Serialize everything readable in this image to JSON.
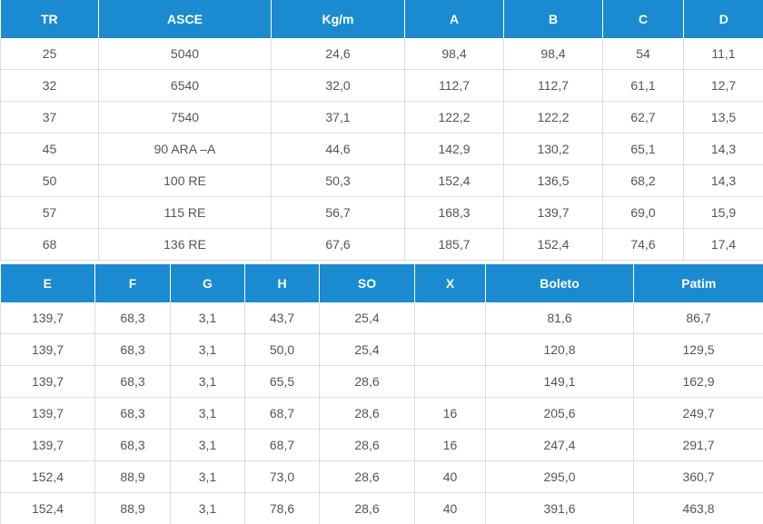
{
  "table1": {
    "headers": [
      "TR",
      "ASCE",
      "Kg/m",
      "A",
      "B",
      "C",
      "D"
    ],
    "rows": [
      [
        "25",
        "5040",
        "24,6",
        "98,4",
        "98,4",
        "54",
        "11,1"
      ],
      [
        "32",
        "6540",
        "32,0",
        "112,7",
        "112,7",
        "61,1",
        "12,7"
      ],
      [
        "37",
        "7540",
        "37,1",
        "122,2",
        "122,2",
        "62,7",
        "13,5"
      ],
      [
        "45",
        "90 ARA –A",
        "44,6",
        "142,9",
        "130,2",
        "65,1",
        "14,3"
      ],
      [
        "50",
        "100 RE",
        "50,3",
        "152,4",
        "136,5",
        "68,2",
        "14,3"
      ],
      [
        "57",
        "115 RE",
        "56,7",
        "168,3",
        "139,7",
        "69,0",
        "15,9"
      ],
      [
        "68",
        "136 RE",
        "67,6",
        "185,7",
        "152,4",
        "74,6",
        "17,4"
      ]
    ]
  },
  "table2": {
    "headers": [
      "E",
      "F",
      "G",
      "H",
      "SO",
      "X",
      "Boleto",
      "Patim"
    ],
    "rows": [
      [
        "139,7",
        "68,3",
        "3,1",
        "43,7",
        "25,4",
        "",
        "81,6",
        "86,7"
      ],
      [
        "139,7",
        "68,3",
        "3,1",
        "50,0",
        "25,4",
        "",
        "120,8",
        "129,5"
      ],
      [
        "139,7",
        "68,3",
        "3,1",
        "65,5",
        "28,6",
        "",
        "149,1",
        "162,9"
      ],
      [
        "139,7",
        "68,3",
        "3,1",
        "68,7",
        "28,6",
        "16",
        "205,6",
        "249,7"
      ],
      [
        "139,7",
        "68,3",
        "3,1",
        "68,7",
        "28,6",
        "16",
        "247,4",
        "291,7"
      ],
      [
        "152,4",
        "88,9",
        "3,1",
        "73,0",
        "28,6",
        "40",
        "295,0",
        "360,7"
      ],
      [
        "152,4",
        "88,9",
        "3,1",
        "78,6",
        "28,6",
        "40",
        "391,6",
        "463,8"
      ]
    ]
  },
  "colors": {
    "header_bg": "#1a8bd0",
    "header_text": "#ffffff",
    "cell_text": "#555555",
    "border": "#dddddd"
  }
}
